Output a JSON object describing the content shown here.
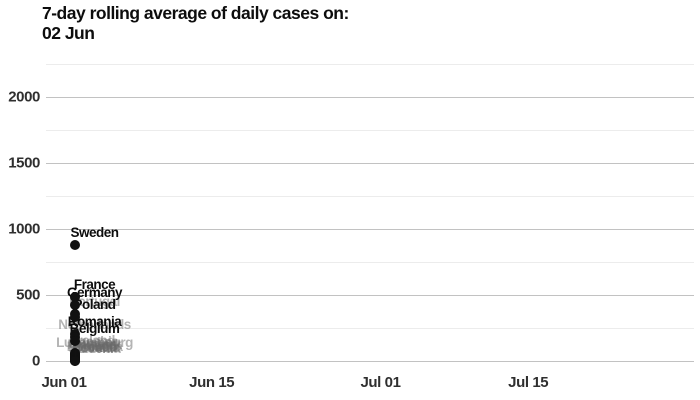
{
  "title": {
    "line1": "7-day rolling average of daily cases on:",
    "line2": "02 Jun"
  },
  "colors": {
    "title_text": "#0d0d0d",
    "axis_text": "#2f2f2f",
    "grid_major": "#c2c2c2",
    "grid_minor": "#ececec",
    "dot": "#111111",
    "highlight_label": "#0d0d0d",
    "muted_label": "#c4c4c4"
  },
  "chart_data": {
    "type": "scatter",
    "title": "7-day rolling average of daily cases on: 02 Jun",
    "date_shown": "02 Jun",
    "grid": true,
    "x_axis": {
      "ticks": [
        {
          "label": "Jun 01",
          "day": 0
        },
        {
          "label": "Jun 15",
          "day": 14
        },
        {
          "label": "Jul 01",
          "day": 30
        },
        {
          "label": "Jul 15",
          "day": 44
        }
      ],
      "range_days": [
        0,
        60
      ]
    },
    "y_axis": {
      "ticks": [
        0,
        500,
        1000,
        1500,
        2000
      ],
      "minor_step": 250,
      "max": 2250,
      "label": "7-day rolling average of daily cases"
    },
    "point_day": 1,
    "series": [
      {
        "name": "Sweden",
        "value": 880,
        "highlighted": true
      },
      {
        "name": "France",
        "value": 485,
        "highlighted": true
      },
      {
        "name": "Germany",
        "value": 425,
        "highlighted": true
      },
      {
        "name": "Portugal",
        "value": 355,
        "highlighted": false
      },
      {
        "name": "Poland",
        "value": 335,
        "highlighted": true
      },
      {
        "name": "Romania",
        "value": 205,
        "highlighted": true
      },
      {
        "name": "Netherlands",
        "value": 180,
        "highlighted": false
      },
      {
        "name": "Belgium",
        "value": 150,
        "highlighted": true
      },
      {
        "name": "Ireland",
        "value": 60,
        "highlighted": false
      },
      {
        "name": "Czechia",
        "value": 50,
        "highlighted": false
      },
      {
        "name": "Luxembourg",
        "value": 45,
        "highlighted": false
      },
      {
        "name": "Hungary",
        "value": 35,
        "highlighted": false
      },
      {
        "name": "Austria",
        "value": 30,
        "highlighted": false
      },
      {
        "name": "Denmark",
        "value": 28,
        "highlighted": false
      },
      {
        "name": "Finland",
        "value": 22,
        "highlighted": false
      },
      {
        "name": "Lithuania",
        "value": 18,
        "highlighted": false
      },
      {
        "name": "Greece",
        "value": 12,
        "highlighted": false
      },
      {
        "name": "Croatia",
        "value": 8,
        "highlighted": false
      },
      {
        "name": "Slovakia",
        "value": 6,
        "highlighted": false
      },
      {
        "name": "Estonia",
        "value": 4,
        "highlighted": false
      },
      {
        "name": "Slovenia",
        "value": 2,
        "highlighted": false
      },
      {
        "name": "Latvia",
        "value": 1,
        "highlighted": false
      }
    ]
  }
}
